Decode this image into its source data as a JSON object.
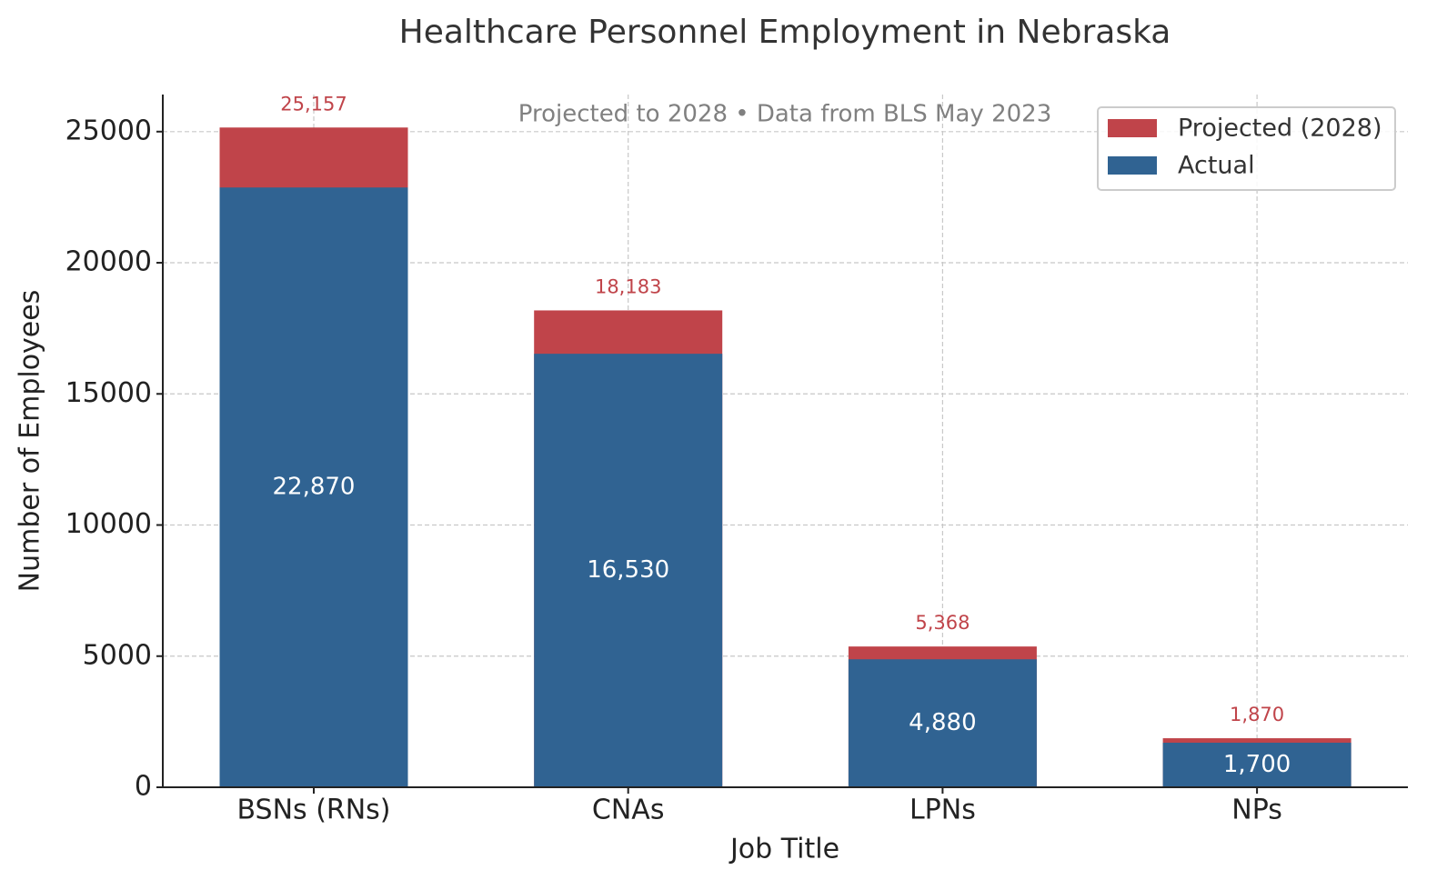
{
  "chart_data": {
    "type": "bar",
    "title": "Healthcare Personnel Employment in Nebraska",
    "subtitle": "Projected to 2028 • Data from BLS May 2023",
    "x_label": "Job Title",
    "y_label": "Number of Employees",
    "categories": [
      "BSNs (RNs)",
      "CNAs",
      "LPNs",
      "NPs"
    ],
    "series": [
      {
        "name": "Projected (2028)",
        "color": "#c0444a",
        "values": [
          25157,
          18183,
          5368,
          1870
        ],
        "value_labels": [
          "25,157",
          "18,183",
          "5,368",
          "1,870"
        ]
      },
      {
        "name": "Actual",
        "color": "#306392",
        "values": [
          22870,
          16530,
          4880,
          1700
        ],
        "value_labels": [
          "22,870",
          "16,530",
          "4,880",
          "1,700"
        ]
      }
    ],
    "ylim": [
      0,
      26414
    ],
    "yticks": [
      0,
      5000,
      10000,
      15000,
      20000,
      25000
    ],
    "grid": true,
    "legend": "upper right"
  }
}
